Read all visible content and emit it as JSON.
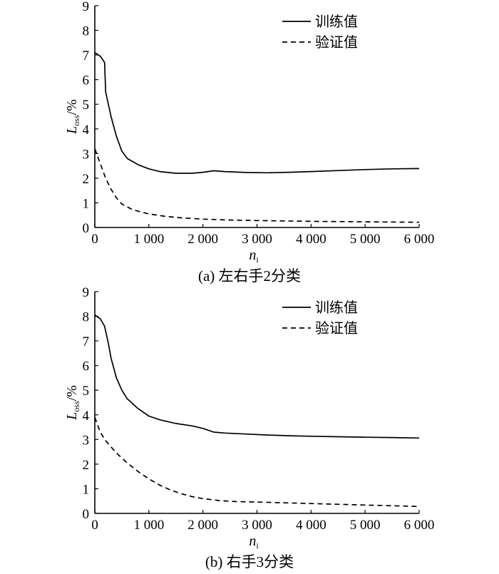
{
  "chart_data": [
    {
      "type": "line",
      "caption": "(a) 左右手2分类",
      "ylabel": {
        "main": "L",
        "sub": "oss",
        "suffix": "/%"
      },
      "xlabel": {
        "main": "n",
        "sub": "i"
      },
      "ylim": [
        0,
        9
      ],
      "xlim": [
        0,
        6000
      ],
      "yticks": [
        "0",
        "1",
        "2",
        "3",
        "4",
        "5",
        "6",
        "7",
        "8",
        "9"
      ],
      "xticks": [
        {
          "value": 0,
          "label": "0"
        },
        {
          "value": 1000,
          "label": "1 000"
        },
        {
          "value": 2000,
          "label": "2 000"
        },
        {
          "value": 3000,
          "label": "3 000"
        },
        {
          "value": 4000,
          "label": "4 000"
        },
        {
          "value": 5000,
          "label": "5 000"
        },
        {
          "value": 6000,
          "label": "6 000"
        }
      ],
      "legend_position": "top-right",
      "series": [
        {
          "name": "训练值",
          "style": "solid",
          "points": [
            [
              0,
              7.1
            ],
            [
              100,
              6.95
            ],
            [
              180,
              6.7
            ],
            [
              200,
              5.5
            ],
            [
              300,
              4.5
            ],
            [
              400,
              3.7
            ],
            [
              500,
              3.1
            ],
            [
              600,
              2.8
            ],
            [
              800,
              2.55
            ],
            [
              1000,
              2.38
            ],
            [
              1200,
              2.27
            ],
            [
              1500,
              2.2
            ],
            [
              1800,
              2.2
            ],
            [
              2000,
              2.24
            ],
            [
              2200,
              2.3
            ],
            [
              2400,
              2.27
            ],
            [
              2800,
              2.23
            ],
            [
              3200,
              2.22
            ],
            [
              3600,
              2.24
            ],
            [
              4000,
              2.27
            ],
            [
              4500,
              2.31
            ],
            [
              5000,
              2.35
            ],
            [
              5500,
              2.38
            ],
            [
              6000,
              2.39
            ]
          ]
        },
        {
          "name": "验证值",
          "style": "dashed",
          "points": [
            [
              0,
              3.2
            ],
            [
              100,
              2.6
            ],
            [
              200,
              2.0
            ],
            [
              300,
              1.55
            ],
            [
              400,
              1.2
            ],
            [
              500,
              0.95
            ],
            [
              700,
              0.72
            ],
            [
              1000,
              0.55
            ],
            [
              1300,
              0.45
            ],
            [
              1600,
              0.39
            ],
            [
              2000,
              0.34
            ],
            [
              2500,
              0.3
            ],
            [
              3000,
              0.28
            ],
            [
              4000,
              0.25
            ],
            [
              5000,
              0.23
            ],
            [
              6000,
              0.21
            ]
          ]
        }
      ]
    },
    {
      "type": "line",
      "caption": "(b) 右手3分类",
      "ylabel": {
        "main": "L",
        "sub": "oss",
        "suffix": "/%"
      },
      "xlabel": {
        "main": "n",
        "sub": "i"
      },
      "ylim": [
        0,
        9
      ],
      "xlim": [
        0,
        6000
      ],
      "yticks": [
        "0",
        "1",
        "2",
        "3",
        "4",
        "5",
        "6",
        "7",
        "8",
        "9"
      ],
      "xticks": [
        {
          "value": 0,
          "label": "0"
        },
        {
          "value": 1000,
          "label": "1 000"
        },
        {
          "value": 2000,
          "label": "2 000"
        },
        {
          "value": 3000,
          "label": "3 000"
        },
        {
          "value": 4000,
          "label": "4 000"
        },
        {
          "value": 5000,
          "label": "5 000"
        },
        {
          "value": 6000,
          "label": "6 000"
        }
      ],
      "legend_position": "top-right",
      "series": [
        {
          "name": "训练值",
          "style": "solid",
          "points": [
            [
              0,
              8.05
            ],
            [
              100,
              7.9
            ],
            [
              180,
              7.6
            ],
            [
              250,
              6.9
            ],
            [
              300,
              6.3
            ],
            [
              400,
              5.5
            ],
            [
              500,
              5.0
            ],
            [
              600,
              4.65
            ],
            [
              800,
              4.25
            ],
            [
              1000,
              3.95
            ],
            [
              1200,
              3.8
            ],
            [
              1500,
              3.65
            ],
            [
              1800,
              3.55
            ],
            [
              2000,
              3.45
            ],
            [
              2200,
              3.3
            ],
            [
              2400,
              3.26
            ],
            [
              2800,
              3.22
            ],
            [
              3200,
              3.18
            ],
            [
              3600,
              3.15
            ],
            [
              4000,
              3.13
            ],
            [
              4500,
              3.11
            ],
            [
              5000,
              3.09
            ],
            [
              5500,
              3.08
            ],
            [
              6000,
              3.06
            ]
          ]
        },
        {
          "name": "验证值",
          "style": "dashed",
          "points": [
            [
              0,
              3.9
            ],
            [
              100,
              3.3
            ],
            [
              200,
              2.95
            ],
            [
              400,
              2.45
            ],
            [
              600,
              2.05
            ],
            [
              800,
              1.7
            ],
            [
              1000,
              1.4
            ],
            [
              1200,
              1.15
            ],
            [
              1400,
              0.95
            ],
            [
              1600,
              0.8
            ],
            [
              1800,
              0.68
            ],
            [
              2000,
              0.6
            ],
            [
              2300,
              0.52
            ],
            [
              2600,
              0.48
            ],
            [
              3000,
              0.46
            ],
            [
              4000,
              0.4
            ],
            [
              5000,
              0.34
            ],
            [
              6000,
              0.28
            ]
          ]
        }
      ]
    }
  ]
}
